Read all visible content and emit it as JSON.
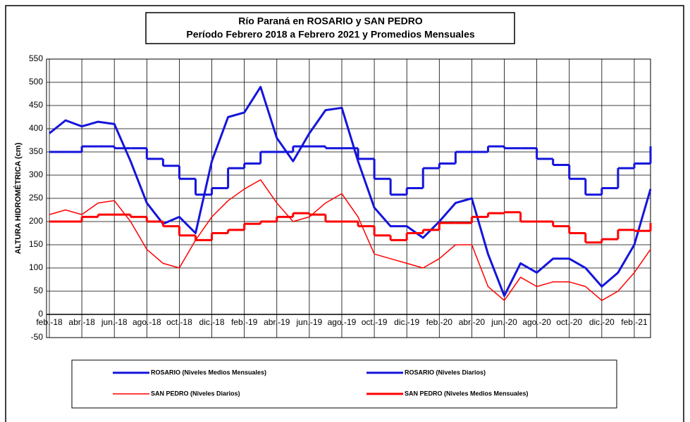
{
  "chart_data": {
    "type": "line",
    "title": "Río Paraná en ROSARIO y SAN PEDRO",
    "subtitle": "Período Febrero 2018 a Febrero 2021 y Promedios Mensuales",
    "y_label": "ALTURA HIDROMÉTRICA (cm)",
    "x": [
      "2018-02",
      "2018-03",
      "2018-04",
      "2018-05",
      "2018-06",
      "2018-07",
      "2018-08",
      "2018-09",
      "2018-10",
      "2018-11",
      "2018-12",
      "2019-01",
      "2019-02",
      "2019-03",
      "2019-04",
      "2019-05",
      "2019-06",
      "2019-07",
      "2019-08",
      "2019-09",
      "2019-10",
      "2019-11",
      "2019-12",
      "2020-01",
      "2020-02",
      "2020-03",
      "2020-04",
      "2020-05",
      "2020-06",
      "2020-07",
      "2020-08",
      "2020-09",
      "2020-10",
      "2020-11",
      "2020-12",
      "2021-01",
      "2021-02",
      "2021-03"
    ],
    "xlim": [
      "2018-02",
      "2021-03"
    ],
    "xticks": [
      {
        "value": "2018-02",
        "label": "feb.-18"
      },
      {
        "value": "2018-04",
        "label": "abr.-18"
      },
      {
        "value": "2018-06",
        "label": "jun.-18"
      },
      {
        "value": "2018-08",
        "label": "ago.-18"
      },
      {
        "value": "2018-10",
        "label": "oct.-18"
      },
      {
        "value": "2018-12",
        "label": "dic.-18"
      },
      {
        "value": "2019-02",
        "label": "feb.-19"
      },
      {
        "value": "2019-04",
        "label": "abr.-19"
      },
      {
        "value": "2019-06",
        "label": "jun.-19"
      },
      {
        "value": "2019-08",
        "label": "ago.-19"
      },
      {
        "value": "2019-10",
        "label": "oct.-19"
      },
      {
        "value": "2019-12",
        "label": "dic.-19"
      },
      {
        "value": "2020-02",
        "label": "feb.-20"
      },
      {
        "value": "2020-04",
        "label": "abr.-20"
      },
      {
        "value": "2020-06",
        "label": "jun.-20"
      },
      {
        "value": "2020-08",
        "label": "ago.-20"
      },
      {
        "value": "2020-10",
        "label": "oct.-20"
      },
      {
        "value": "2020-12",
        "label": "dic.-20"
      },
      {
        "value": "2021-02",
        "label": "feb.-21"
      }
    ],
    "ylim": [
      -50,
      550
    ],
    "yticks": [
      -50,
      0,
      50,
      100,
      150,
      200,
      250,
      300,
      350,
      400,
      450,
      500,
      550
    ],
    "grid": true,
    "series": [
      {
        "name": "ROSARIO (Niveles Medios Mensuales)",
        "color": "#1414dc",
        "line_width": 3,
        "step": true,
        "values": [
          350,
          350,
          362,
          362,
          358,
          358,
          335,
          320,
          292,
          258,
          272,
          315,
          325,
          350,
          350,
          362,
          362,
          358,
          358,
          335,
          292,
          258,
          272,
          315,
          325,
          350,
          350,
          362,
          358,
          358,
          335,
          322,
          292,
          258,
          272,
          315,
          325,
          362
        ]
      },
      {
        "name": "ROSARIO (Niveles Diarios)",
        "color": "#1414dc",
        "line_width": 3,
        "step": false,
        "values": [
          390,
          418,
          405,
          415,
          410,
          330,
          240,
          195,
          210,
          175,
          330,
          425,
          435,
          490,
          380,
          330,
          390,
          440,
          445,
          330,
          230,
          190,
          190,
          165,
          200,
          240,
          250,
          130,
          40,
          110,
          90,
          120,
          120,
          100,
          60,
          90,
          150,
          270
        ]
      },
      {
        "name": "SAN PEDRO (Niveles Diarios)",
        "color": "#ff0000",
        "line_width": 1.5,
        "step": false,
        "values": [
          215,
          225,
          215,
          240,
          245,
          200,
          140,
          110,
          100,
          160,
          210,
          245,
          270,
          290,
          240,
          200,
          210,
          240,
          260,
          210,
          130,
          120,
          110,
          100,
          120,
          150,
          150,
          60,
          30,
          80,
          60,
          70,
          70,
          60,
          30,
          50,
          90,
          140
        ]
      },
      {
        "name": "SAN PEDRO (Niveles Medios Mensuales)",
        "color": "#ff0000",
        "line_width": 3,
        "step": true,
        "values": [
          200,
          200,
          210,
          215,
          215,
          210,
          200,
          190,
          170,
          160,
          175,
          182,
          195,
          200,
          210,
          218,
          215,
          200,
          200,
          190,
          170,
          160,
          175,
          182,
          197,
          197,
          210,
          218,
          220,
          200,
          200,
          190,
          175,
          155,
          162,
          182,
          180,
          197
        ]
      }
    ]
  }
}
